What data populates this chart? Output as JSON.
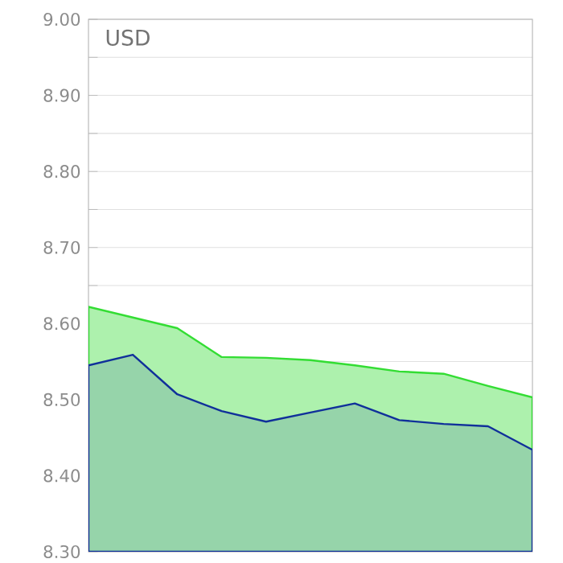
{
  "chart_data": {
    "type": "area",
    "ylabel": "USD",
    "categories": [
      null,
      null,
      null,
      null,
      null,
      null,
      null,
      null,
      null,
      null,
      null
    ],
    "series": [
      {
        "color": "#33dd33",
        "values": [
          8.622,
          8.608,
          8.594,
          8.556,
          8.555,
          8.552,
          8.545,
          8.537,
          8.534,
          8.518,
          8.503
        ]
      },
      {
        "color": "#10309a",
        "values": [
          8.545,
          8.559,
          8.507,
          8.485,
          8.471,
          8.483,
          8.495,
          8.473,
          8.468,
          8.465,
          8.434
        ]
      }
    ],
    "ylim": [
      8.3,
      9.0
    ],
    "yticks": [
      {
        "value": 8.3,
        "label": "8.30"
      },
      {
        "value": 8.35,
        "label": null
      },
      {
        "value": 8.4,
        "label": "8.40"
      },
      {
        "value": 8.45,
        "label": null
      },
      {
        "value": 8.5,
        "label": "8.50"
      },
      {
        "value": 8.55,
        "label": null
      },
      {
        "value": 8.6,
        "label": "8.60"
      },
      {
        "value": 8.65,
        "label": null
      },
      {
        "value": 8.7,
        "label": "8.70"
      },
      {
        "value": 8.75,
        "label": null
      },
      {
        "value": 8.8,
        "label": "8.80"
      },
      {
        "value": 8.85,
        "label": null
      },
      {
        "value": 8.9,
        "label": "8.90"
      },
      {
        "value": 8.95,
        "label": null
      },
      {
        "value": 9.0,
        "label": "9.00"
      }
    ],
    "grid": "y",
    "tick_labels": "y"
  }
}
